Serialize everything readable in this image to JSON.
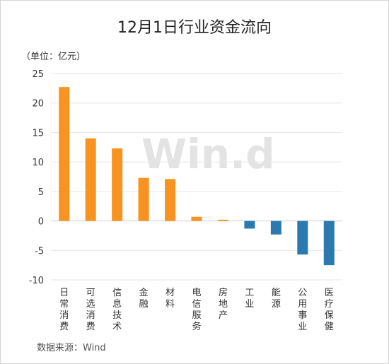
{
  "chart_data": {
    "type": "bar",
    "title": "12月1日行业资金流向",
    "unit_label": "（单位：亿元）",
    "source": "数据来源：Wind",
    "watermark": "Win.d",
    "categories": [
      "日常消费",
      "可选消费",
      "信息技术",
      "金融",
      "材料",
      "电信服务",
      "房地产",
      "工业",
      "能源",
      "公用事业",
      "医疗保健"
    ],
    "values": [
      22.7,
      14.0,
      12.3,
      7.3,
      7.1,
      0.7,
      0.2,
      -1.3,
      -2.3,
      -5.7,
      -7.5
    ],
    "yticks": [
      25,
      20,
      15,
      10,
      5,
      0,
      -5,
      -10
    ],
    "ylim": [
      -10,
      25
    ],
    "grid": true,
    "colors": {
      "positive": "#f7931e",
      "negative": "#2a7ab0"
    }
  }
}
